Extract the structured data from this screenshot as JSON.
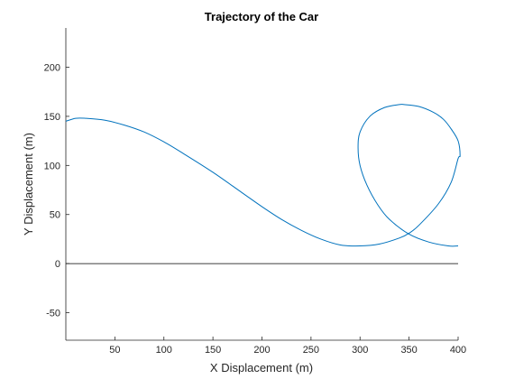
{
  "chart_data": {
    "type": "line",
    "title": "Trajectory of the Car",
    "xlabel": "X Displacement (m)",
    "ylabel": "Y Displacement (m)",
    "xlim": [
      0,
      400
    ],
    "ylim": [
      -78,
      240
    ],
    "xticks": [
      50,
      100,
      150,
      200,
      250,
      300,
      350,
      400
    ],
    "yticks": [
      -50,
      0,
      50,
      100,
      150,
      200
    ],
    "grid": false,
    "reference_lines": [
      {
        "y": 0,
        "x_range": [
          0,
          400
        ],
        "color": "#000000"
      }
    ],
    "series": [
      {
        "color": "#0072BD",
        "x": [
          0,
          10,
          20,
          40,
          60,
          80,
          100,
          120,
          150,
          180,
          200,
          220,
          240,
          260,
          280,
          300,
          320,
          340,
          350,
          360,
          380,
          393,
          400,
          402,
          400,
          393,
          385,
          375,
          360,
          345,
          340,
          325,
          310,
          300,
          298,
          300,
          307,
          318,
          330,
          350,
          370,
          390,
          400
        ],
        "y": [
          145,
          148,
          148,
          146,
          141,
          134,
          124,
          112,
          93,
          72,
          58,
          45,
          34,
          25,
          19,
          18,
          20,
          26,
          31,
          39,
          61,
          83,
          107,
          110,
          125,
          137,
          147,
          154,
          160,
          162,
          162,
          159,
          150,
          134,
          118,
          100,
          80,
          60,
          45,
          30,
          22,
          18,
          18
        ]
      }
    ]
  }
}
